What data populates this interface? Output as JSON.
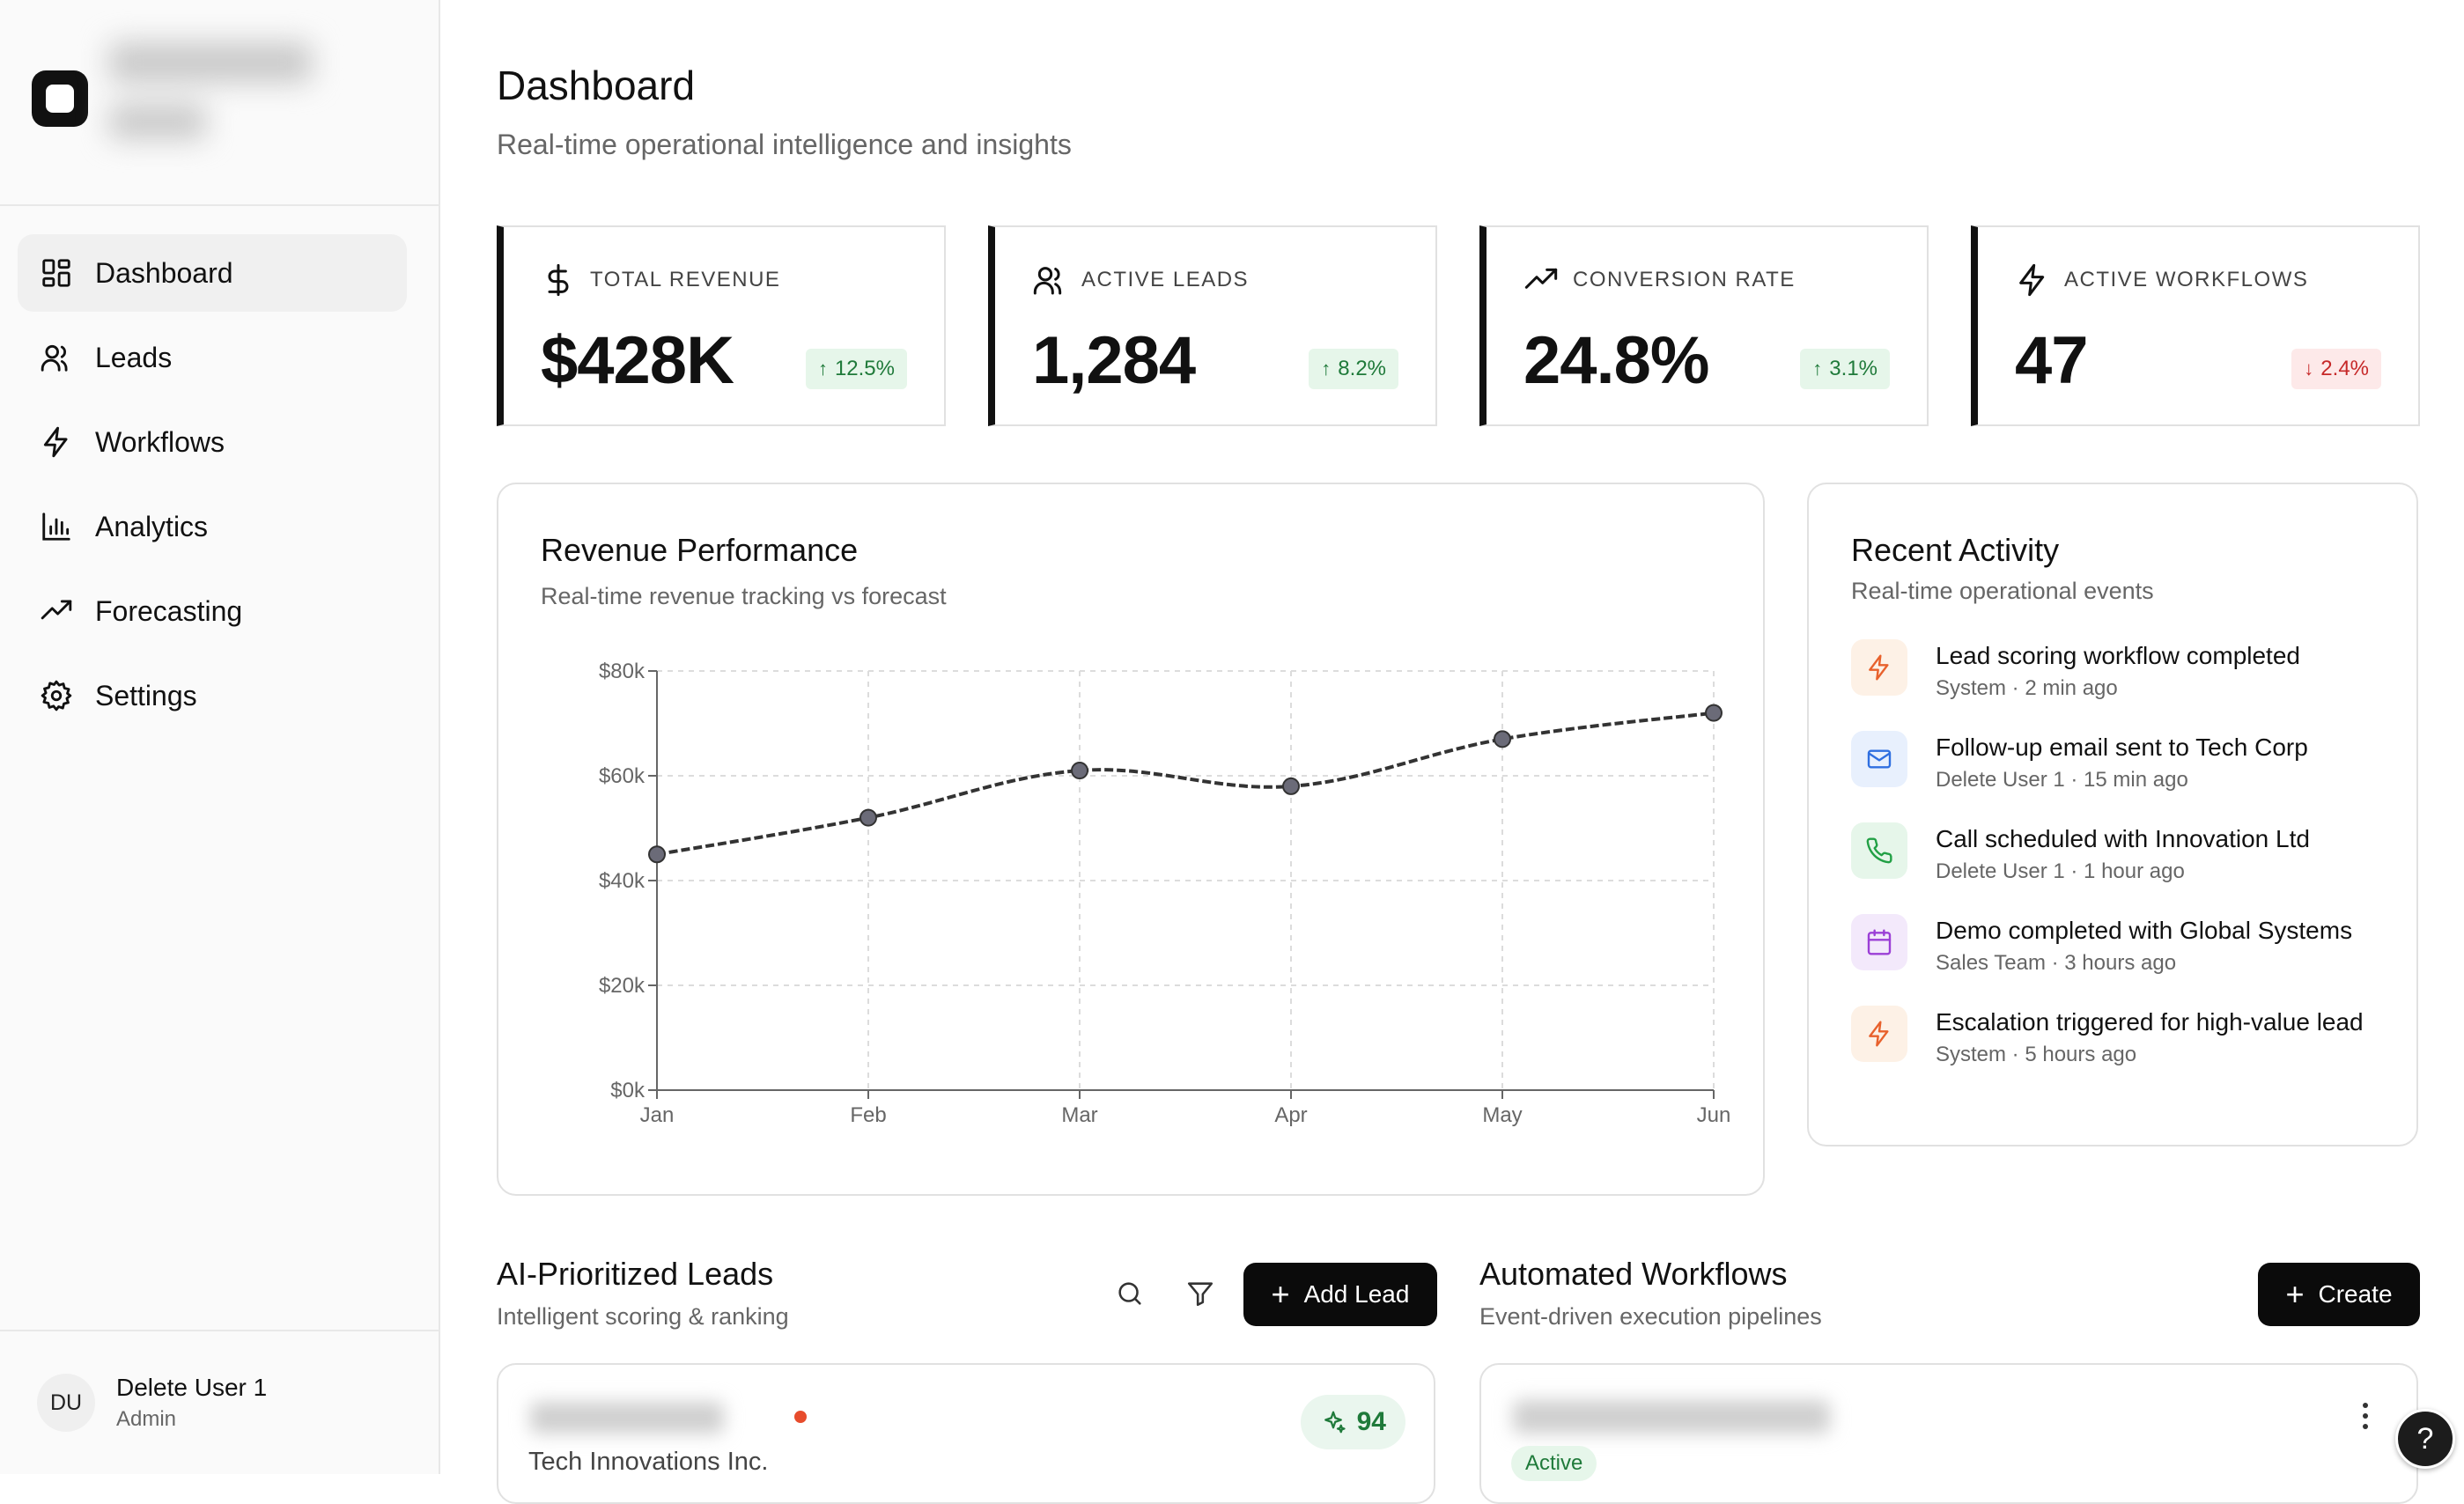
{
  "sidebar": {
    "nav": [
      {
        "label": "Dashboard",
        "icon": "layout-dashboard-icon",
        "active": true
      },
      {
        "label": "Leads",
        "icon": "users-icon"
      },
      {
        "label": "Workflows",
        "icon": "zap-icon"
      },
      {
        "label": "Analytics",
        "icon": "bar-chart-icon"
      },
      {
        "label": "Forecasting",
        "icon": "trending-up-icon"
      },
      {
        "label": "Settings",
        "icon": "gear-icon"
      }
    ],
    "user": {
      "initials": "DU",
      "name": "Delete User 1",
      "role": "Admin"
    }
  },
  "header": {
    "title": "Dashboard",
    "subtitle": "Real-time operational intelligence and insights"
  },
  "kpis": [
    {
      "label": "TOTAL REVENUE",
      "icon": "dollar-icon",
      "value": "$428K",
      "change": "12.5%",
      "direction": "up"
    },
    {
      "label": "ACTIVE LEADS",
      "icon": "users-icon",
      "value": "1,284",
      "change": "8.2%",
      "direction": "up"
    },
    {
      "label": "CONVERSION RATE",
      "icon": "trending-up-icon",
      "value": "24.8%",
      "change": "3.1%",
      "direction": "up"
    },
    {
      "label": "ACTIVE WORKFLOWS",
      "icon": "zap-icon",
      "value": "47",
      "change": "2.4%",
      "direction": "down"
    }
  ],
  "revenue": {
    "title": "Revenue Performance",
    "subtitle": "Real-time revenue tracking vs forecast"
  },
  "chart_data": {
    "type": "line",
    "categories": [
      "Jan",
      "Feb",
      "Mar",
      "Apr",
      "May",
      "Jun"
    ],
    "series": [
      {
        "values": [
          45,
          52,
          61,
          58,
          67,
          72
        ]
      }
    ],
    "y_ticks": [
      "$0k",
      "$20k",
      "$40k",
      "$60k",
      "$80k"
    ],
    "ylim": [
      0,
      80
    ],
    "grid": true,
    "line_color": "#333333",
    "marker_color": "#6b6b78"
  },
  "activity": {
    "title": "Recent Activity",
    "subtitle": "Real-time operational events",
    "items": [
      {
        "title": "Lead scoring workflow completed",
        "meta": "System · 2 min ago",
        "icon": "zap-icon",
        "bg": "#fdf1e6",
        "fg": "#e8612c"
      },
      {
        "title": "Follow-up email sent to Tech Corp",
        "meta": "Delete User 1 · 15 min ago",
        "icon": "mail-icon",
        "bg": "#e8f0fd",
        "fg": "#2f6fe0"
      },
      {
        "title": "Call scheduled with Innovation Ltd",
        "meta": "Delete User 1 · 1 hour ago",
        "icon": "phone-icon",
        "bg": "#e6f6ea",
        "fg": "#22a045"
      },
      {
        "title": "Demo completed with Global Systems",
        "meta": "Sales Team · 3 hours ago",
        "icon": "calendar-icon",
        "bg": "#f3e9fb",
        "fg": "#9b3fd6"
      },
      {
        "title": "Escalation triggered for high-value lead",
        "meta": "System · 5 hours ago",
        "icon": "zap-icon",
        "bg": "#fdf1e6",
        "fg": "#e8612c"
      }
    ]
  },
  "leads": {
    "title": "AI-Prioritized Leads",
    "subtitle": "Intelligent scoring & ranking",
    "add_label": "Add Lead",
    "card": {
      "company": "Tech Innovations Inc.",
      "score": "94"
    }
  },
  "workflows": {
    "title": "Automated Workflows",
    "subtitle": "Event-driven execution pipelines",
    "create_label": "Create",
    "card": {
      "status": "Active"
    }
  },
  "help_label": "?"
}
